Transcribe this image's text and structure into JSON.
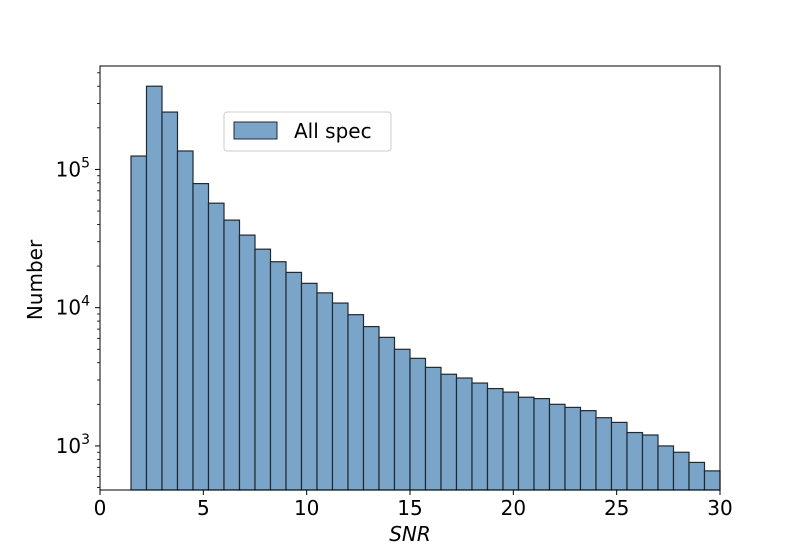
{
  "chart_data": {
    "type": "bar",
    "title": "",
    "xlabel": "SNR",
    "ylabel": "Number",
    "xlim": [
      0,
      30
    ],
    "ylim": [
      480,
      560000
    ],
    "y_scale": "log",
    "grid": false,
    "legend_placement": "upper-left",
    "colors": {
      "bar_fill": "#7ba4c9",
      "bar_edge": "#1f2a33",
      "axis": "#000000"
    },
    "x_ticks": [
      {
        "value": 0,
        "label": "0"
      },
      {
        "value": 5,
        "label": "5"
      },
      {
        "value": 10,
        "label": "10"
      },
      {
        "value": 15,
        "label": "15"
      },
      {
        "value": 20,
        "label": "20"
      },
      {
        "value": 25,
        "label": "25"
      },
      {
        "value": 30,
        "label": "30"
      }
    ],
    "y_ticks": [
      {
        "value": 1000,
        "base": "10",
        "exp": "3"
      },
      {
        "value": 10000,
        "base": "10",
        "exp": "4"
      },
      {
        "value": 100000,
        "base": "10",
        "exp": "5"
      }
    ],
    "series": [
      {
        "name": "All spec",
        "bin_edges": [
          1.5,
          2.25,
          3.0,
          3.75,
          4.5,
          5.25,
          6.0,
          6.75,
          7.5,
          8.25,
          9.0,
          9.75,
          10.5,
          11.25,
          12.0,
          12.75,
          13.5,
          14.25,
          15.0,
          15.75,
          16.5,
          17.25,
          18.0,
          18.75,
          19.5,
          20.25,
          21.0,
          21.75,
          22.5,
          23.25,
          24.0,
          24.75,
          25.5,
          26.25,
          27.0,
          27.75,
          28.5,
          29.25,
          30.0
        ],
        "values": [
          125000,
          400000,
          260000,
          136000,
          79000,
          57000,
          43000,
          33500,
          26500,
          21500,
          18000,
          15000,
          12800,
          10800,
          8900,
          7300,
          6100,
          5000,
          4300,
          3700,
          3300,
          3100,
          2850,
          2600,
          2450,
          2250,
          2200,
          2000,
          1900,
          1800,
          1600,
          1480,
          1250,
          1200,
          1000,
          900,
          760,
          660
        ]
      }
    ]
  }
}
